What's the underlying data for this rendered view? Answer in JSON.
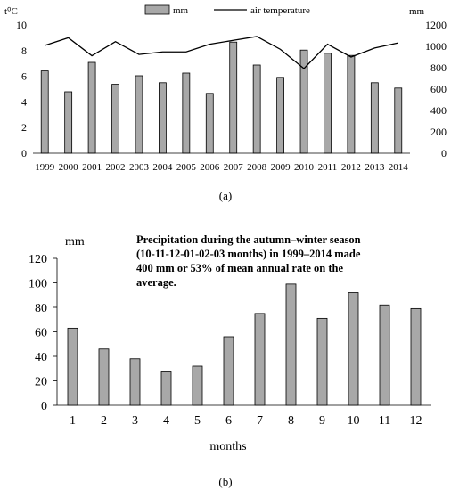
{
  "chart_data": [
    {
      "type": "bar+line",
      "panel_label": "(a)",
      "years": [
        "1999",
        "2000",
        "2001",
        "2002",
        "2003",
        "2004",
        "2005",
        "2006",
        "2007",
        "2008",
        "2009",
        "2010",
        "2011",
        "2012",
        "2013",
        "2014"
      ],
      "series": [
        {
          "name": "mm",
          "type": "bar",
          "axis": "right",
          "color": "#a8a8a8",
          "values": [
            770,
            575,
            850,
            645,
            725,
            660,
            750,
            560,
            1040,
            825,
            710,
            965,
            935,
            915,
            660,
            610
          ]
        },
        {
          "name": "air temperature",
          "type": "line",
          "axis": "left",
          "color": "#000000",
          "values": [
            8.4,
            9.0,
            7.6,
            8.7,
            7.7,
            7.9,
            7.9,
            8.5,
            8.8,
            9.1,
            8.1,
            6.6,
            8.5,
            7.5,
            8.2,
            8.6
          ]
        }
      ],
      "left_axis": {
        "label": "t⁰C",
        "range": [
          0,
          10
        ],
        "ticks": [
          "0",
          "2",
          "4",
          "6",
          "8",
          "10"
        ]
      },
      "right_axis": {
        "label": "mm",
        "range": [
          0,
          1200
        ],
        "ticks": [
          "0",
          "200",
          "400",
          "600",
          "800",
          "1000",
          "1200"
        ]
      },
      "legend": {
        "position": "top",
        "entries": [
          "mm",
          "air temperature"
        ]
      }
    },
    {
      "type": "bar",
      "panel_label": "(b)",
      "categories": [
        "1",
        "2",
        "3",
        "4",
        "5",
        "6",
        "7",
        "8",
        "9",
        "10",
        "11",
        "12"
      ],
      "series": [
        {
          "name": "",
          "color": "#a8a8a8",
          "values": [
            63,
            46,
            38,
            28,
            32,
            56,
            75,
            99,
            71,
            92,
            82,
            79
          ]
        }
      ],
      "ylabel": "mm",
      "xlabel": "months",
      "ylim": [
        0,
        120
      ],
      "yticks": [
        "0",
        "20",
        "40",
        "60",
        "80",
        "100",
        "120"
      ],
      "annotation": [
        "Precipitation during the autumn–winter season",
        "(10-11-12-01-02-03 months) in 1999–2014 made",
        "400 mm or 53% of mean annual rate on the",
        "average."
      ]
    }
  ]
}
